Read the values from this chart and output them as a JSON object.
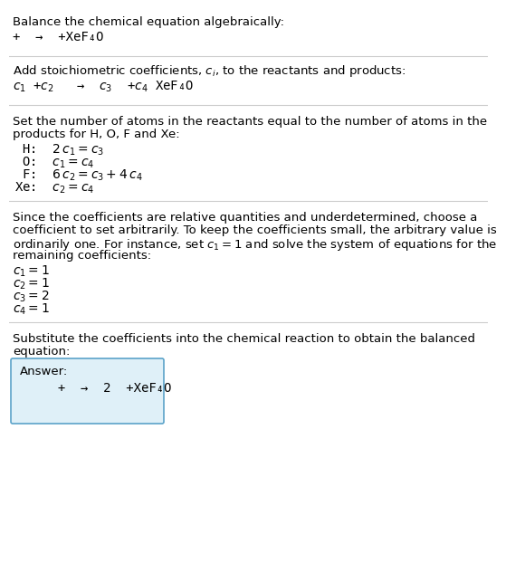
{
  "title": "Balance the chemical equation algebraically:",
  "line1": "+  →  +XeF₄O",
  "section2_title": "Add stoichiometric coefficients, $c_i$, to the reactants and products:",
  "section2_eq": "$c_1$ +$c_2$   →  $c_3$  +$c_4$ XeF₄O",
  "section3_line1": "Set the number of atoms in the reactants equal to the number of atoms in the",
  "section3_line2": "products for H, O, F and Xe:",
  "section3_lines": [
    " H:  $2\\,c_1 = c_3$",
    " O:  $c_1 = c_4$",
    " F:  $6\\,c_2 = c_3 + 4\\,c_4$",
    "Xe:  $c_2 = c_4$"
  ],
  "section4_line1": "Since the coefficients are relative quantities and underdetermined, choose a",
  "section4_line2": "coefficient to set arbitrarily. To keep the coefficients small, the arbitrary value is",
  "section4_line3": "ordinarily one. For instance, set $c_1 = 1$ and solve the system of equations for the",
  "section4_line4": "remaining coefficients:",
  "section4_vals": [
    "$c_1 = 1$",
    "$c_2 = 1$",
    "$c_3 = 2$",
    "$c_4 = 1$"
  ],
  "section5_line1": "Substitute the coefficients into the chemical reaction to obtain the balanced",
  "section5_line2": "equation:",
  "answer_label": "Answer:",
  "answer_eq": "     +  →  2  +XeF₄O",
  "bg_color": "#ffffff",
  "answer_box_facecolor": "#dff0f8",
  "answer_box_edgecolor": "#5ba3c9",
  "text_color": "#000000",
  "line_color": "#cccccc"
}
